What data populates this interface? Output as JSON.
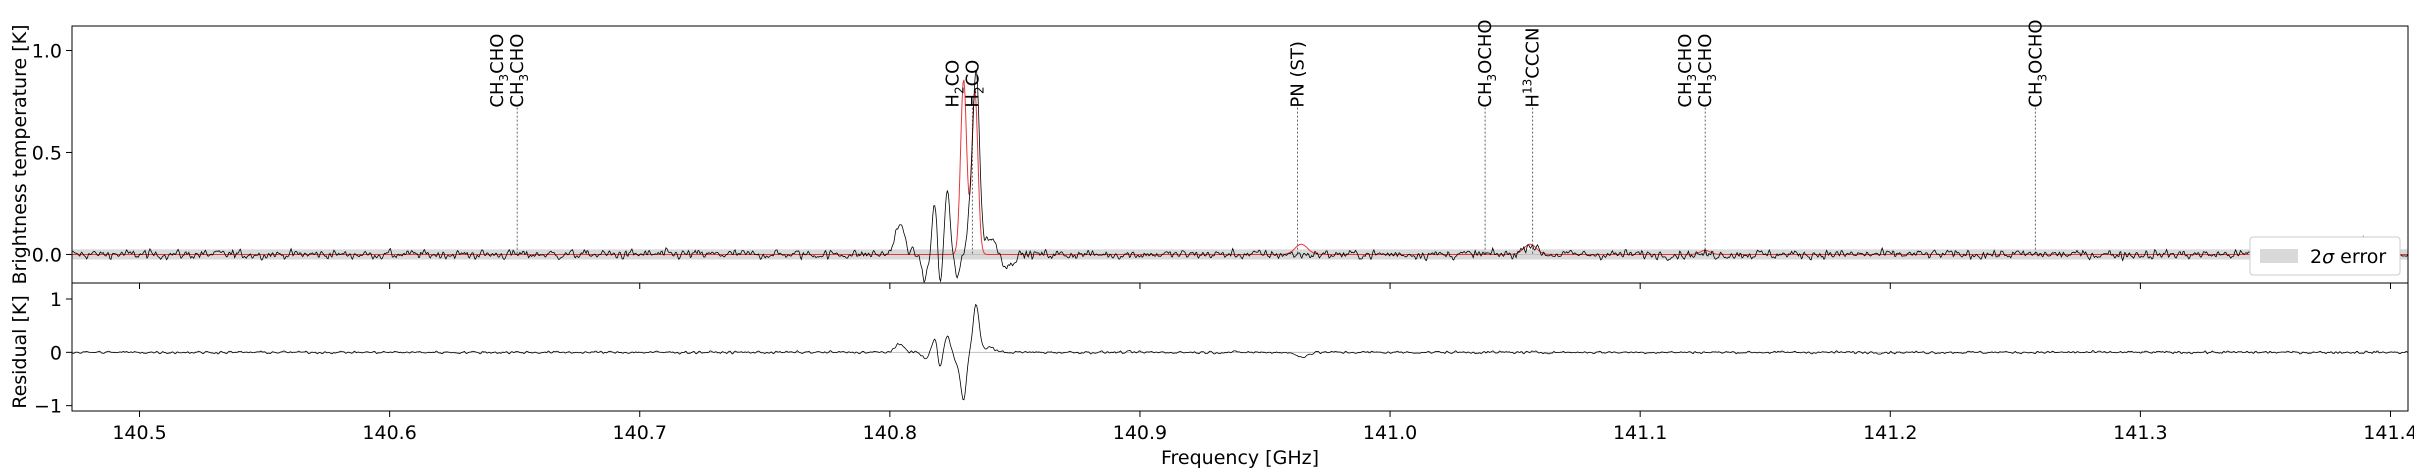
{
  "chart_data": [
    {
      "type": "line",
      "panel": "spectrum",
      "ylabel": "Brightness temperature [K]",
      "xlim": [
        140.473,
        141.407
      ],
      "ylim": [
        -0.14,
        1.12
      ],
      "yticks": [
        0.0,
        0.5,
        1.0
      ],
      "ytick_labels": [
        "0.0",
        "0.5",
        "1.0"
      ],
      "error_band": {
        "label": "2σ error",
        "label_base": "2",
        "label_sym": "σ",
        "label_rest": " error",
        "range": [
          -0.025,
          0.025
        ],
        "color": "#d9d9d9"
      },
      "legend_position": "lower-right",
      "series_colors": {
        "observed": "#000000",
        "model": "#e8373a"
      },
      "lines": [
        {
          "labels": [
            {
              "pre": "CH",
              "sub": "3",
              "post": "CHO"
            },
            {
              "pre": "CH",
              "sub": "3",
              "post": "CHO"
            }
          ],
          "freq": 140.651
        },
        {
          "labels": [
            {
              "pre": "H",
              "sub": "2",
              "post": "CO"
            },
            {
              "pre": "H",
              "sub": "2",
              "post": "CO"
            }
          ],
          "freq": 140.833
        },
        {
          "labels": [
            {
              "pre": "PN (ST)",
              "sub": "",
              "post": ""
            }
          ],
          "freq": 140.963
        },
        {
          "labels": [
            {
              "pre": "CH",
              "sub": "3",
              "post": "OCHO"
            }
          ],
          "freq": 141.038
        },
        {
          "labels": [
            {
              "pre": "H",
              "sup": "13",
              "post": "CCCN"
            }
          ],
          "freq": 141.057
        },
        {
          "labels": [
            {
              "pre": "CH",
              "sub": "3",
              "post": "CHO"
            },
            {
              "pre": "CH",
              "sub": "3",
              "post": "CHO"
            }
          ],
          "freq": 141.126
        },
        {
          "labels": [
            {
              "pre": "CH",
              "sub": "3",
              "post": "OCHO"
            }
          ],
          "freq": 141.258
        }
      ],
      "model_peaks": [
        {
          "center": 140.8295,
          "amp": 0.86,
          "width": 0.0012
        },
        {
          "center": 140.834,
          "amp": 0.8,
          "width": 0.0012
        },
        {
          "center": 140.9645,
          "amp": 0.05,
          "width": 0.0025
        },
        {
          "center": 141.056,
          "amp": 0.05,
          "width": 0.0025
        },
        {
          "center": 141.126,
          "amp": 0.02,
          "width": 0.002
        }
      ],
      "observed_features": [
        {
          "center": 140.804,
          "amp": 0.14,
          "width": 0.002
        },
        {
          "center": 140.814,
          "amp": -0.12,
          "width": 0.0012
        },
        {
          "center": 140.818,
          "amp": 0.26,
          "width": 0.001
        },
        {
          "center": 140.82,
          "amp": -0.18,
          "width": 0.0008
        },
        {
          "center": 140.823,
          "amp": 0.32,
          "width": 0.001
        },
        {
          "center": 140.827,
          "amp": -0.1,
          "width": 0.0012
        },
        {
          "center": 140.832,
          "amp": 0.18,
          "width": 0.001
        },
        {
          "center": 140.8345,
          "amp": 0.9,
          "width": 0.0013
        },
        {
          "center": 140.84,
          "amp": 0.08,
          "width": 0.0025
        },
        {
          "center": 140.847,
          "amp": -0.06,
          "width": 0.002
        },
        {
          "center": 141.056,
          "amp": 0.05,
          "width": 0.0025
        },
        {
          "center": 141.39,
          "amp": 0.08,
          "width": 0.002
        }
      ],
      "noise_rms": 0.018
    },
    {
      "type": "line",
      "panel": "residual",
      "ylabel": "Residual [K]",
      "xlabel": "Frequency [GHz]",
      "xlim": [
        140.473,
        141.407
      ],
      "ylim": [
        -1.1,
        1.3
      ],
      "yticks": [
        -1,
        0,
        1
      ],
      "ytick_labels": [
        "−1",
        "0",
        "1"
      ],
      "xticks": [
        140.5,
        140.6,
        140.7,
        140.8,
        140.9,
        141.0,
        141.1,
        141.2,
        141.3,
        141.4
      ],
      "xtick_labels": [
        "140.5",
        "140.6",
        "140.7",
        "140.8",
        "140.9",
        "141.0",
        "141.1",
        "141.2",
        "141.3",
        "141.4"
      ],
      "residual_features": [
        {
          "center": 140.804,
          "amp": 0.14,
          "width": 0.002
        },
        {
          "center": 140.814,
          "amp": -0.12,
          "width": 0.0012
        },
        {
          "center": 140.818,
          "amp": 0.26,
          "width": 0.001
        },
        {
          "center": 140.82,
          "amp": -0.3,
          "width": 0.0008
        },
        {
          "center": 140.823,
          "amp": 0.3,
          "width": 0.001
        },
        {
          "center": 140.827,
          "amp": -0.2,
          "width": 0.001
        },
        {
          "center": 140.8295,
          "amp": -0.88,
          "width": 0.0011
        },
        {
          "center": 140.8345,
          "amp": 0.9,
          "width": 0.0012
        },
        {
          "center": 140.84,
          "amp": 0.1,
          "width": 0.002
        },
        {
          "center": 140.9645,
          "amp": -0.08,
          "width": 0.0025
        }
      ],
      "noise_rms": 0.02
    }
  ]
}
